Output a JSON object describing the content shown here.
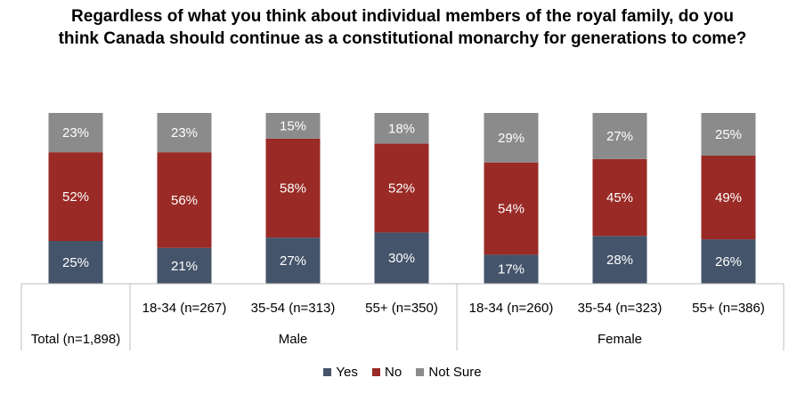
{
  "chart_data": {
    "type": "bar",
    "stacked": true,
    "normalized_percent": true,
    "title": "Regardless of what you think about individual members of the royal family, do you think Canada should continue as a constitutional monarchy for generations to come?",
    "categories": [
      "Total (n=1,898)",
      "18-34 (n=267)",
      "35-54 (n=313)",
      "55+ (n=350)",
      "18-34 (n=260)",
      "35-54 (n=323)",
      "55+ (n=386)"
    ],
    "groups": [
      {
        "label": "",
        "categories": [
          "Total (n=1,898)"
        ]
      },
      {
        "label": "Male",
        "categories": [
          "18-34 (n=267)",
          "35-54 (n=313)",
          "55+ (n=350)"
        ]
      },
      {
        "label": "Female",
        "categories": [
          "18-34 (n=260)",
          "35-54 (n=323)",
          "55+ (n=386)"
        ]
      }
    ],
    "series": [
      {
        "name": "Yes",
        "color": "#44546a",
        "values": [
          25,
          21,
          27,
          30,
          17,
          28,
          26
        ]
      },
      {
        "name": "No",
        "color": "#992a25",
        "values": [
          52,
          56,
          58,
          52,
          54,
          45,
          49
        ]
      },
      {
        "name": "Not Sure",
        "color": "#8b8b8b",
        "values": [
          23,
          23,
          15,
          18,
          29,
          27,
          25
        ]
      }
    ],
    "data_label_suffix": "%",
    "legend_position": "bottom",
    "grid": false
  }
}
